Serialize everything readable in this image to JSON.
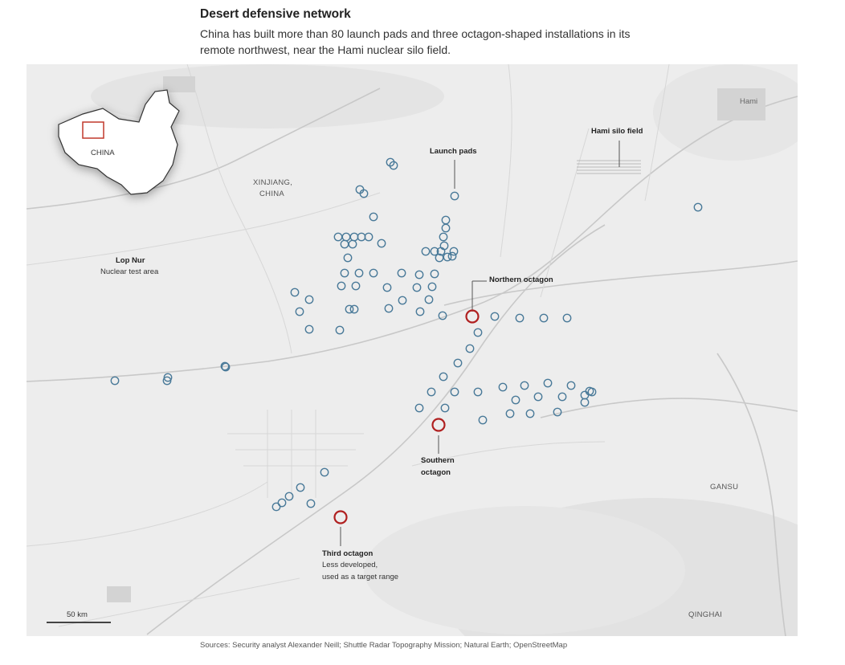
{
  "title": "Desert defensive network",
  "subtitle": "China has built more than 80 launch pads and three octagon-shaped installations in its remote northwest, near the Hami nuclear silo field.",
  "source": "Sources: Security analyst Alexander Neill; Shuttle Radar Topography Mission; Natural Earth; OpenStreetMap",
  "map": {
    "labels": {
      "hami": "Hami",
      "hami_silo_field": "Hami silo field",
      "launch_pads": "Launch pads",
      "xinjiang_1": "XINJIANG,",
      "xinjiang_2": "CHINA",
      "lop_nur": "Lop Nur",
      "lop_nur_sub": "Nuclear test area",
      "northern_octagon": "Northern octagon",
      "southern_octagon_1": "Southern",
      "southern_octagon_2": "octagon",
      "third_octagon": "Third octagon",
      "third_octagon_sub_1": "Less developed,",
      "third_octagon_sub_2": "used as a target range",
      "gansu": "GANSU",
      "qinghai": "QINGHAI",
      "scale": "50 km"
    },
    "inset": {
      "label": "CHINA"
    },
    "colors": {
      "launch_pad": "#4a7a99",
      "octagon": "#b02020",
      "background": "#ededed"
    },
    "launch_pad_count_shown": 93
  }
}
